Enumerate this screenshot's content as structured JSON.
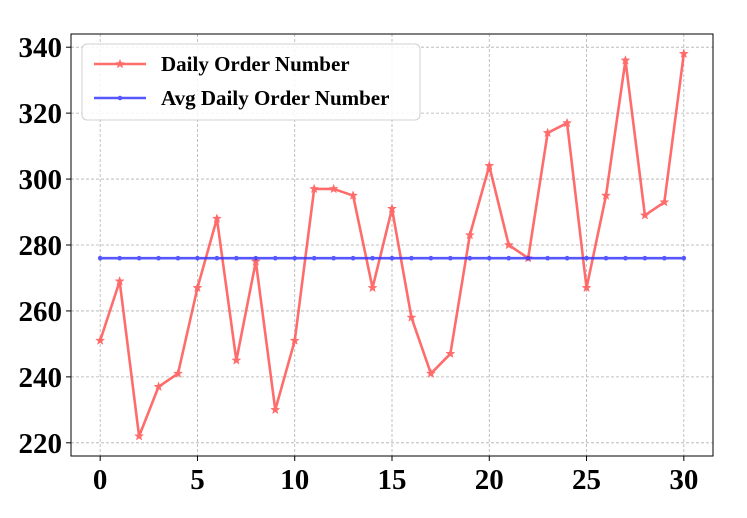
{
  "chart_data": {
    "type": "line",
    "title": "",
    "xlabel": "",
    "ylabel": "",
    "xlim": [
      -1.5,
      31.5
    ],
    "ylim": [
      216,
      344
    ],
    "xticks": [
      0,
      5,
      10,
      15,
      20,
      25,
      30
    ],
    "yticks": [
      220,
      240,
      260,
      280,
      300,
      320,
      340
    ],
    "grid": true,
    "legend_position": "top-left",
    "x": [
      0,
      1,
      2,
      3,
      4,
      5,
      6,
      7,
      8,
      9,
      10,
      11,
      12,
      13,
      14,
      15,
      16,
      17,
      18,
      19,
      20,
      21,
      22,
      23,
      24,
      25,
      26,
      27,
      28,
      29,
      30
    ],
    "series": [
      {
        "name": "Daily Order Number",
        "color": "#ff4d4d",
        "marker": "star",
        "values": [
          251,
          269,
          222,
          237,
          241,
          267,
          288,
          245,
          275,
          230,
          251,
          297,
          297,
          295,
          267,
          291,
          258,
          241,
          247,
          283,
          304,
          280,
          276,
          314,
          317,
          267,
          295,
          336,
          289,
          293,
          338
        ]
      },
      {
        "name": "Avg Daily Order Number",
        "color": "#3333ff",
        "marker": "dot",
        "values": [
          276,
          276,
          276,
          276,
          276,
          276,
          276,
          276,
          276,
          276,
          276,
          276,
          276,
          276,
          276,
          276,
          276,
          276,
          276,
          276,
          276,
          276,
          276,
          276,
          276,
          276,
          276,
          276,
          276,
          276,
          276
        ]
      }
    ]
  }
}
